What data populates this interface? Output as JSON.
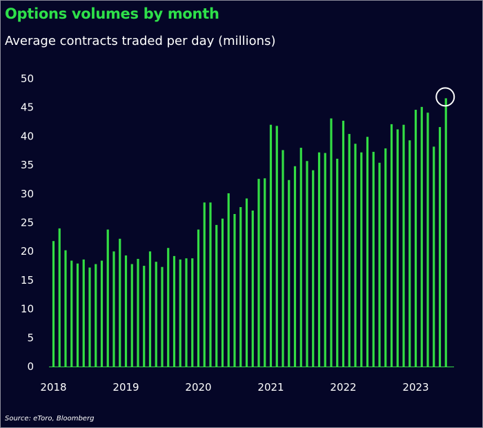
{
  "title": "Options volumes by month",
  "subtitle": "Average contracts traded per day (millions)",
  "source": "Source: eToro, Bloomberg",
  "colors": {
    "background": "#050627",
    "bar": "#33dd44",
    "text": "#ffffff",
    "title": "#2ee04a",
    "highlight": "#ffffff"
  },
  "chart_data": {
    "type": "bar",
    "title": "Options volumes by month",
    "subtitle": "Average contracts traded per day (millions)",
    "ylim": [
      0,
      50
    ],
    "yticks": [
      0,
      5,
      10,
      15,
      20,
      25,
      30,
      35,
      40,
      45,
      50
    ],
    "xticks": [
      "2018",
      "2019",
      "2020",
      "2021",
      "2022",
      "2023"
    ],
    "grid": false,
    "highlight": "Jun 2023",
    "categories": [
      "Jan 2018",
      "Feb 2018",
      "Mar 2018",
      "Apr 2018",
      "May 2018",
      "Jun 2018",
      "Jul 2018",
      "Aug 2018",
      "Sep 2018",
      "Oct 2018",
      "Nov 2018",
      "Dec 2018",
      "Jan 2019",
      "Feb 2019",
      "Mar 2019",
      "Apr 2019",
      "May 2019",
      "Jun 2019",
      "Jul 2019",
      "Aug 2019",
      "Sep 2019",
      "Oct 2019",
      "Nov 2019",
      "Dec 2019",
      "Jan 2020",
      "Feb 2020",
      "Mar 2020",
      "Apr 2020",
      "May 2020",
      "Jun 2020",
      "Jul 2020",
      "Aug 2020",
      "Sep 2020",
      "Oct 2020",
      "Nov 2020",
      "Dec 2020",
      "Jan 2021",
      "Feb 2021",
      "Mar 2021",
      "Apr 2021",
      "May 2021",
      "Jun 2021",
      "Jul 2021",
      "Aug 2021",
      "Sep 2021",
      "Oct 2021",
      "Nov 2021",
      "Dec 2021",
      "Jan 2022",
      "Feb 2022",
      "Mar 2022",
      "Apr 2022",
      "May 2022",
      "Jun 2022",
      "Jul 2022",
      "Aug 2022",
      "Sep 2022",
      "Oct 2022",
      "Nov 2022",
      "Dec 2022",
      "Jan 2023",
      "Feb 2023",
      "Mar 2023",
      "Apr 2023",
      "May 2023",
      "Jun 2023"
    ],
    "values": [
      21.8,
      24.0,
      20.2,
      18.4,
      17.9,
      18.6,
      17.2,
      17.8,
      18.4,
      23.8,
      20.0,
      22.2,
      19.3,
      17.8,
      18.7,
      17.5,
      20.0,
      18.2,
      17.3,
      20.6,
      19.2,
      18.6,
      18.8,
      18.8,
      23.8,
      28.5,
      28.5,
      24.6,
      25.7,
      30.1,
      26.5,
      27.7,
      29.2,
      27.1,
      32.6,
      32.7,
      42.0,
      41.8,
      37.6,
      32.4,
      34.8,
      38.0,
      35.7,
      34.1,
      37.2,
      37.1,
      43.1,
      36.1,
      42.7,
      40.4,
      38.7,
      37.2,
      39.9,
      37.3,
      35.4,
      37.9,
      42.1,
      41.2,
      42.0,
      39.3,
      44.6,
      45.1,
      44.1,
      38.2,
      41.6,
      46.6
    ]
  }
}
